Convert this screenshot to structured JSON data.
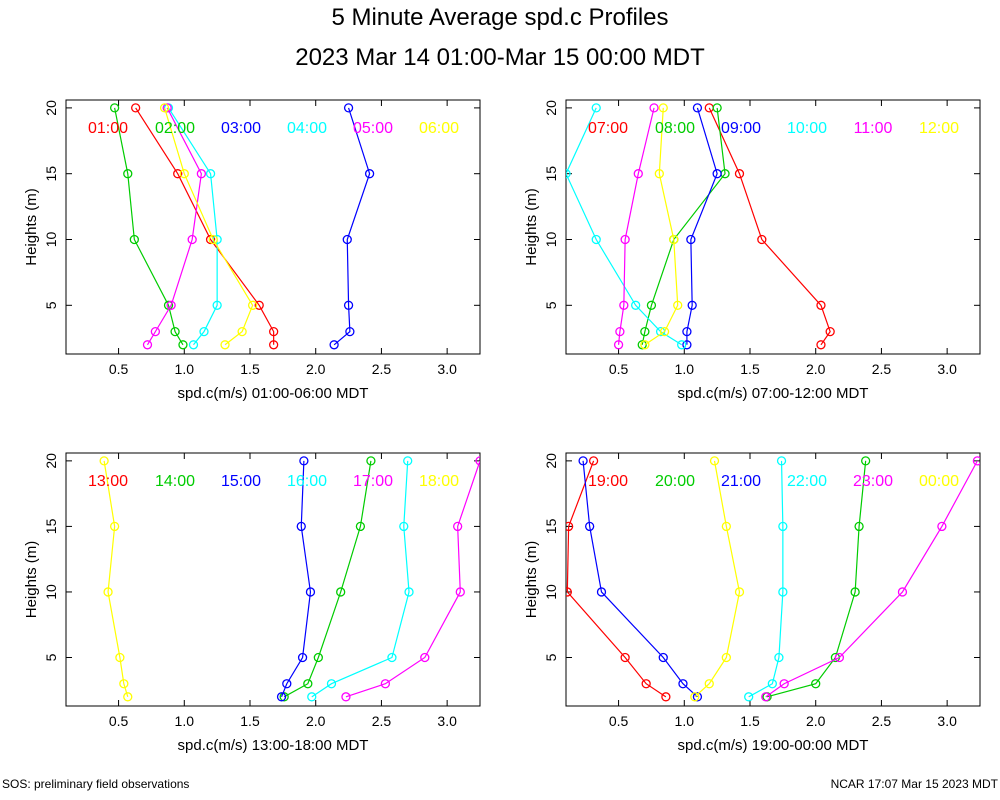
{
  "title": "5 Minute Average spd.c Profiles",
  "subtitle": "2023 Mar 14 01:00-Mar 15 00:00 MDT",
  "footer": {
    "left": "SOS: preliminary field observations",
    "right": "NCAR 17:07 Mar 15 2023 MDT"
  },
  "colors": [
    "#ff0000",
    "#00cc00",
    "#0000ff",
    "#00ffff",
    "#ff00ff",
    "#ffff00"
  ],
  "chart_data": [
    {
      "type": "line",
      "xlabel": "spd.c(m/s) 01:00-06:00 MDT",
      "ylabel": "Heights (m)",
      "xlim": [
        0.1,
        3.25
      ],
      "ylim": [
        1.3,
        20.6
      ],
      "xticks": [
        0.5,
        1.0,
        1.5,
        2.0,
        2.5,
        3.0
      ],
      "xtick_labels": [
        "0.5",
        "1.0",
        "1.5",
        "2.0",
        "2.5",
        "3.0"
      ],
      "yticks": [
        5,
        10,
        15,
        20
      ],
      "ytick_labels": [
        "5",
        "10",
        "15",
        "20"
      ],
      "heights": [
        2,
        3,
        5,
        10,
        15,
        20
      ],
      "series": [
        {
          "name": "01:00",
          "values": [
            1.68,
            1.68,
            1.57,
            1.2,
            0.95,
            0.63
          ]
        },
        {
          "name": "02:00",
          "values": [
            0.99,
            0.93,
            0.88,
            0.62,
            0.57,
            0.47
          ]
        },
        {
          "name": "03:00",
          "values": [
            2.14,
            2.26,
            2.25,
            2.24,
            2.41,
            2.25
          ]
        },
        {
          "name": "04:00",
          "values": [
            1.07,
            1.15,
            1.25,
            1.25,
            1.2,
            0.88
          ]
        },
        {
          "name": "05:00",
          "values": [
            0.72,
            0.78,
            0.9,
            1.06,
            1.13,
            0.87
          ]
        },
        {
          "name": "06:00",
          "values": [
            1.31,
            1.44,
            1.52,
            1.22,
            1.0,
            0.85
          ]
        }
      ]
    },
    {
      "type": "line",
      "xlabel": "spd.c(m/s) 07:00-12:00 MDT",
      "ylabel": "Heights (m)",
      "xlim": [
        0.1,
        3.25
      ],
      "ylim": [
        1.3,
        20.6
      ],
      "xticks": [
        0.5,
        1.0,
        1.5,
        2.0,
        2.5,
        3.0
      ],
      "xtick_labels": [
        "0.5",
        "1.0",
        "1.5",
        "2.0",
        "2.5",
        "3.0"
      ],
      "yticks": [
        5,
        10,
        15,
        20
      ],
      "ytick_labels": [
        "5",
        "10",
        "15",
        "20"
      ],
      "heights": [
        2,
        3,
        5,
        10,
        15,
        20
      ],
      "series": [
        {
          "name": "07:00",
          "values": [
            2.04,
            2.11,
            2.04,
            1.59,
            1.42,
            1.19
          ]
        },
        {
          "name": "08:00",
          "values": [
            0.68,
            0.7,
            0.75,
            0.92,
            1.31,
            1.25
          ]
        },
        {
          "name": "09:00",
          "values": [
            1.02,
            1.02,
            1.06,
            1.05,
            1.25,
            1.1
          ]
        },
        {
          "name": "10:00",
          "values": [
            0.98,
            0.82,
            0.63,
            0.33,
            0.1,
            0.33
          ]
        },
        {
          "name": "11:00",
          "values": [
            0.5,
            0.51,
            0.54,
            0.55,
            0.65,
            0.77
          ]
        },
        {
          "name": "12:00",
          "values": [
            0.7,
            0.85,
            0.95,
            0.92,
            0.81,
            0.84
          ]
        }
      ]
    },
    {
      "type": "line",
      "xlabel": "spd.c(m/s) 13:00-18:00 MDT",
      "ylabel": "Heights (m)",
      "xlim": [
        0.1,
        3.25
      ],
      "ylim": [
        1.3,
        20.6
      ],
      "xticks": [
        0.5,
        1.0,
        1.5,
        2.0,
        2.5,
        3.0
      ],
      "xtick_labels": [
        "0.5",
        "1.0",
        "1.5",
        "2.0",
        "2.5",
        "3.0"
      ],
      "yticks": [
        5,
        10,
        15,
        20
      ],
      "ytick_labels": [
        "5",
        "10",
        "15",
        "20"
      ],
      "heights": [
        2,
        3,
        5,
        10,
        15,
        20
      ],
      "series": [
        {
          "name": "13:00",
          "values": [
            null,
            null,
            null,
            null,
            null,
            null
          ]
        },
        {
          "name": "14:00",
          "values": [
            1.76,
            1.94,
            2.02,
            2.19,
            2.34,
            2.42
          ]
        },
        {
          "name": "15:00",
          "values": [
            1.74,
            1.78,
            1.9,
            1.96,
            1.89,
            1.91
          ]
        },
        {
          "name": "16:00",
          "values": [
            1.97,
            2.12,
            2.58,
            2.71,
            2.67,
            2.7
          ]
        },
        {
          "name": "17:00",
          "values": [
            2.23,
            2.53,
            2.83,
            3.1,
            3.08,
            3.25
          ]
        },
        {
          "name": "18:00",
          "values": [
            0.57,
            0.54,
            0.51,
            0.42,
            0.47,
            0.39
          ]
        }
      ]
    },
    {
      "type": "line",
      "xlabel": "spd.c(m/s) 19:00-00:00 MDT",
      "ylabel": "Heights (m)",
      "xlim": [
        0.1,
        3.25
      ],
      "ylim": [
        1.3,
        20.6
      ],
      "xticks": [
        0.5,
        1.0,
        1.5,
        2.0,
        2.5,
        3.0
      ],
      "xtick_labels": [
        "0.5",
        "1.0",
        "1.5",
        "2.0",
        "2.5",
        "3.0"
      ],
      "yticks": [
        5,
        10,
        15,
        20
      ],
      "ytick_labels": [
        "5",
        "10",
        "15",
        "20"
      ],
      "heights": [
        2,
        3,
        5,
        10,
        15,
        20
      ],
      "series": [
        {
          "name": "19:00",
          "values": [
            0.86,
            0.71,
            0.55,
            0.11,
            0.12,
            0.31
          ]
        },
        {
          "name": "20:00",
          "values": [
            1.63,
            2.0,
            2.15,
            2.3,
            2.33,
            2.38
          ]
        },
        {
          "name": "21:00",
          "values": [
            1.1,
            0.99,
            0.84,
            0.37,
            0.28,
            0.23
          ]
        },
        {
          "name": "22:00",
          "values": [
            1.49,
            1.67,
            1.72,
            1.75,
            1.75,
            1.74
          ]
        },
        {
          "name": "23:00",
          "values": [
            1.62,
            1.76,
            2.18,
            2.66,
            2.96,
            3.23
          ]
        },
        {
          "name": "00:00",
          "values": [
            1.08,
            1.19,
            1.32,
            1.42,
            1.32,
            1.23
          ]
        }
      ]
    }
  ]
}
